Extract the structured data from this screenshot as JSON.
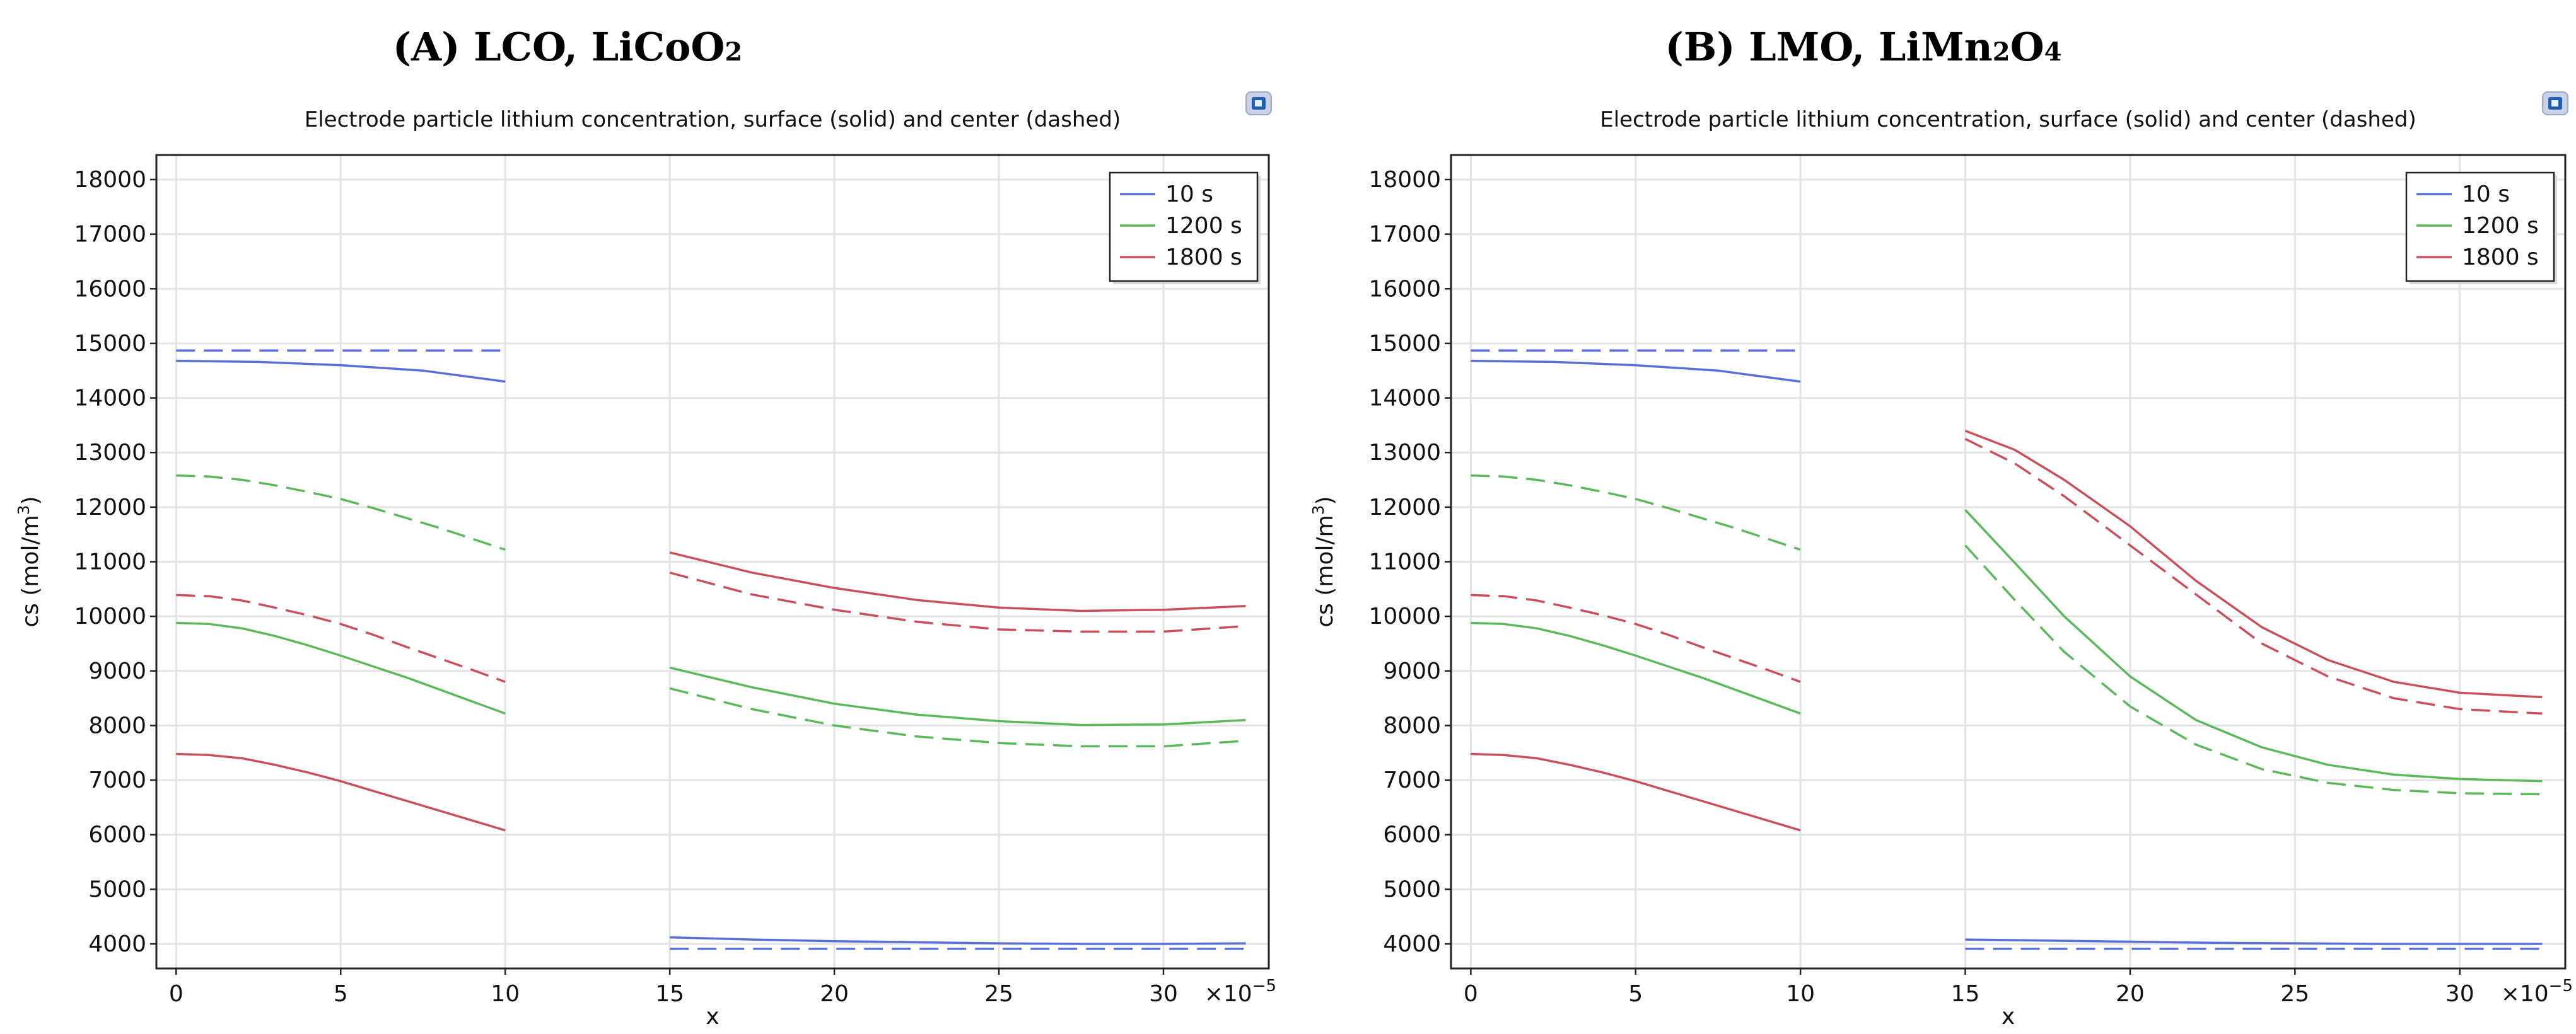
{
  "panels": [
    {
      "heading_pre": "(A) LCO, LiCoO",
      "heading_sub": "2",
      "heading_post": "",
      "chart_data": {
        "type": "line",
        "title": "Electrode particle lithium concentration, surface (solid) and center (dashed)",
        "xlabel": "x",
        "ylabel_main": "cs (mol/m",
        "ylabel_sup": "3",
        "ylabel_end": ")",
        "x_multiplier": "×10",
        "x_multiplier_exp": "−5",
        "xlim": [
          -0.6,
          33.2
        ],
        "ylim": [
          3550,
          18450
        ],
        "xticks": [
          0,
          5,
          10,
          15,
          20,
          25,
          30
        ],
        "yticks": [
          4000,
          5000,
          6000,
          7000,
          8000,
          9000,
          10000,
          11000,
          12000,
          13000,
          14000,
          15000,
          16000,
          17000,
          18000
        ],
        "legend": [
          "10 s",
          "1200 s",
          "1800 s"
        ],
        "legend_position": "top-right",
        "series": [
          {
            "name": "10 s",
            "color": "#5a6fd6",
            "style": "solid",
            "x": [
              0,
              2.5,
              5,
              7.5,
              10
            ],
            "y": [
              14680,
              14660,
              14600,
              14500,
              14300
            ]
          },
          {
            "name": "10 s",
            "color": "#5a6fd6",
            "style": "dashed",
            "x": [
              0,
              10
            ],
            "y": [
              14870,
              14870
            ]
          },
          {
            "name": "10 s",
            "color": "#5a6fd6",
            "style": "solid",
            "x": [
              15,
              17.5,
              20,
              22.5,
              25,
              27.5,
              30,
              32.5
            ],
            "y": [
              4120,
              4080,
              4050,
              4030,
              4010,
              4000,
              4000,
              4010
            ]
          },
          {
            "name": "10 s",
            "color": "#5a6fd6",
            "style": "dashed",
            "x": [
              15,
              32.5
            ],
            "y": [
              3910,
              3910
            ]
          },
          {
            "name": "1200 s",
            "color": "#5cb85c",
            "style": "solid",
            "x": [
              0,
              1,
              2,
              3,
              4,
              5,
              6,
              7,
              8,
              9,
              10
            ],
            "y": [
              9880,
              9860,
              9780,
              9640,
              9470,
              9280,
              9080,
              8880,
              8660,
              8440,
              8220
            ]
          },
          {
            "name": "1200 s",
            "color": "#5cb85c",
            "style": "dashed",
            "x": [
              0,
              1,
              2,
              3,
              4,
              5,
              6,
              7,
              8,
              9,
              10
            ],
            "y": [
              12580,
              12560,
              12500,
              12400,
              12280,
              12150,
              11980,
              11800,
              11620,
              11420,
              11220
            ]
          },
          {
            "name": "1200 s",
            "color": "#5cb85c",
            "style": "solid",
            "x": [
              15,
              17.5,
              20,
              22.5,
              25,
              27.5,
              30,
              32.5
            ],
            "y": [
              9060,
              8700,
              8400,
              8200,
              8080,
              8010,
              8020,
              8100
            ]
          },
          {
            "name": "1200 s",
            "color": "#5cb85c",
            "style": "dashed",
            "x": [
              15,
              17.5,
              20,
              22.5,
              25,
              27.5,
              30,
              32.5
            ],
            "y": [
              8680,
              8300,
              8000,
              7800,
              7680,
              7620,
              7620,
              7720
            ]
          },
          {
            "name": "1800 s",
            "color": "#c9505a",
            "style": "solid",
            "x": [
              0,
              1,
              2,
              3,
              4,
              5,
              6,
              7,
              8,
              9,
              10
            ],
            "y": [
              7480,
              7460,
              7400,
              7280,
              7140,
              6980,
              6800,
              6620,
              6440,
              6260,
              6080
            ]
          },
          {
            "name": "1800 s",
            "color": "#c9505a",
            "style": "dashed",
            "x": [
              0,
              1,
              2,
              3,
              4,
              5,
              6,
              7,
              8,
              9,
              10
            ],
            "y": [
              10390,
              10370,
              10290,
              10160,
              10020,
              9860,
              9660,
              9440,
              9230,
              9020,
              8800
            ]
          },
          {
            "name": "1800 s",
            "color": "#c9505a",
            "style": "solid",
            "x": [
              15,
              17.5,
              20,
              22.5,
              25,
              27.5,
              30,
              32.5
            ],
            "y": [
              11170,
              10800,
              10520,
              10300,
              10160,
              10100,
              10120,
              10190
            ]
          },
          {
            "name": "1800 s",
            "color": "#c9505a",
            "style": "dashed",
            "x": [
              15,
              17.5,
              20,
              22.5,
              25,
              27.5,
              30,
              32.5
            ],
            "y": [
              10800,
              10400,
              10120,
              9900,
              9760,
              9720,
              9720,
              9820
            ]
          }
        ]
      }
    },
    {
      "heading_pre": "(B) LMO, LiMn",
      "heading_sub": "2",
      "heading_post": "O",
      "heading_sub2": "4",
      "chart_data": {
        "type": "line",
        "title": "Electrode particle lithium concentration, surface (solid) and center (dashed)",
        "xlabel": "x",
        "ylabel_main": "cs (mol/m",
        "ylabel_sup": "3",
        "ylabel_end": ")",
        "x_multiplier": "×10",
        "x_multiplier_exp": "−5",
        "xlim": [
          -0.6,
          33.2
        ],
        "ylim": [
          3550,
          18450
        ],
        "xticks": [
          0,
          5,
          10,
          15,
          20,
          25,
          30
        ],
        "yticks": [
          4000,
          5000,
          6000,
          7000,
          8000,
          9000,
          10000,
          11000,
          12000,
          13000,
          14000,
          15000,
          16000,
          17000,
          18000
        ],
        "legend": [
          "10 s",
          "1200 s",
          "1800 s"
        ],
        "legend_position": "top-right",
        "series": [
          {
            "name": "10 s",
            "color": "#5a6fd6",
            "style": "solid",
            "x": [
              0,
              2.5,
              5,
              7.5,
              10
            ],
            "y": [
              14680,
              14660,
              14600,
              14500,
              14300
            ]
          },
          {
            "name": "10 s",
            "color": "#5a6fd6",
            "style": "dashed",
            "x": [
              0,
              10
            ],
            "y": [
              14870,
              14870
            ]
          },
          {
            "name": "10 s",
            "color": "#5a6fd6",
            "style": "solid",
            "x": [
              15,
              17.5,
              20,
              22.5,
              25,
              27.5,
              30,
              32.5
            ],
            "y": [
              4080,
              4060,
              4040,
              4020,
              4010,
              4000,
              4000,
              4000
            ]
          },
          {
            "name": "10 s",
            "color": "#5a6fd6",
            "style": "dashed",
            "x": [
              15,
              32.5
            ],
            "y": [
              3910,
              3910
            ]
          },
          {
            "name": "1200 s",
            "color": "#5cb85c",
            "style": "solid",
            "x": [
              0,
              1,
              2,
              3,
              4,
              5,
              6,
              7,
              8,
              9,
              10
            ],
            "y": [
              9880,
              9860,
              9780,
              9640,
              9470,
              9280,
              9080,
              8880,
              8660,
              8440,
              8220
            ]
          },
          {
            "name": "1200 s",
            "color": "#5cb85c",
            "style": "dashed",
            "x": [
              0,
              1,
              2,
              3,
              4,
              5,
              6,
              7,
              8,
              9,
              10
            ],
            "y": [
              12580,
              12560,
              12500,
              12400,
              12280,
              12150,
              11980,
              11800,
              11620,
              11420,
              11220
            ]
          },
          {
            "name": "1200 s",
            "color": "#5cb85c",
            "style": "solid",
            "x": [
              15,
              16.5,
              18,
              20,
              22,
              24,
              26,
              28,
              30,
              32.5
            ],
            "y": [
              11950,
              10980,
              10000,
              8900,
              8100,
              7600,
              7280,
              7100,
              7020,
              6980
            ]
          },
          {
            "name": "1200 s",
            "color": "#5cb85c",
            "style": "dashed",
            "x": [
              15,
              16.5,
              18,
              20,
              22,
              24,
              26,
              28,
              30,
              32.5
            ],
            "y": [
              11300,
              10300,
              9350,
              8350,
              7650,
              7200,
              6950,
              6820,
              6760,
              6740
            ]
          },
          {
            "name": "1800 s",
            "color": "#c9505a",
            "style": "solid",
            "x": [
              0,
              1,
              2,
              3,
              4,
              5,
              6,
              7,
              8,
              9,
              10
            ],
            "y": [
              7480,
              7460,
              7400,
              7280,
              7140,
              6980,
              6800,
              6620,
              6440,
              6260,
              6080
            ]
          },
          {
            "name": "1800 s",
            "color": "#c9505a",
            "style": "dashed",
            "x": [
              0,
              1,
              2,
              3,
              4,
              5,
              6,
              7,
              8,
              9,
              10
            ],
            "y": [
              10390,
              10370,
              10290,
              10160,
              10020,
              9860,
              9660,
              9440,
              9230,
              9020,
              8800
            ]
          },
          {
            "name": "1800 s",
            "color": "#c9505a",
            "style": "solid",
            "x": [
              15,
              16.5,
              18,
              20,
              22,
              24,
              26,
              28,
              30,
              32.5
            ],
            "y": [
              13400,
              13050,
              12500,
              11650,
              10650,
              9800,
              9200,
              8800,
              8600,
              8520
            ]
          },
          {
            "name": "1800 s",
            "color": "#c9505a",
            "style": "dashed",
            "x": [
              15,
              16.5,
              18,
              20,
              22,
              24,
              26,
              28,
              30,
              32.5
            ],
            "y": [
              13250,
              12800,
              12200,
              11300,
              10400,
              9500,
              8900,
              8500,
              8300,
              8220
            ]
          }
        ]
      }
    }
  ]
}
